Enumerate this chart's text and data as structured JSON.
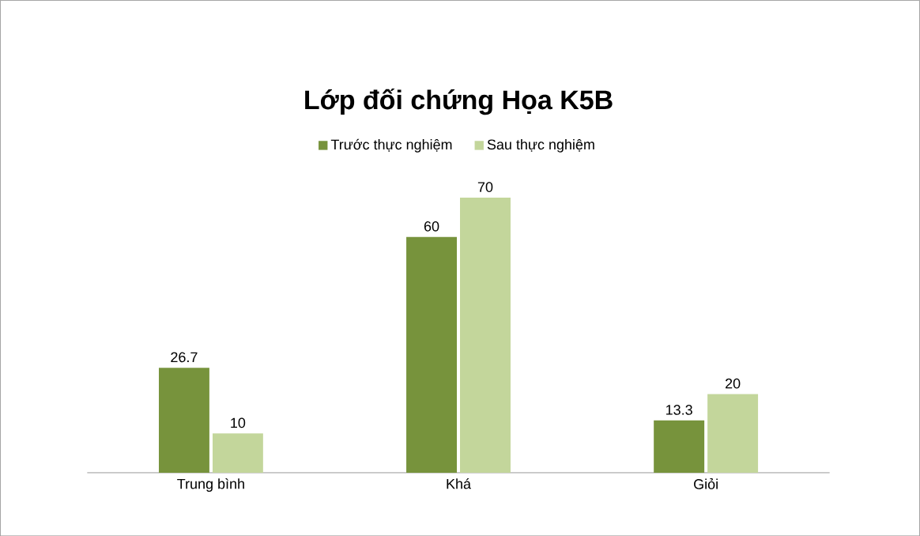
{
  "chart_data": {
    "type": "bar",
    "title": "Lớp đối chứng Họa K5B",
    "categories": [
      "Trung bình",
      "Khá",
      "Giỏi"
    ],
    "series": [
      {
        "name": "Trước thực nghiệm",
        "color": "#77933c",
        "values": [
          26.7,
          60,
          13.3
        ]
      },
      {
        "name": "Sau thực nghiệm",
        "color": "#c3d69b",
        "values": [
          10,
          70,
          20
        ]
      }
    ],
    "data_labels": true,
    "legend": "top"
  }
}
